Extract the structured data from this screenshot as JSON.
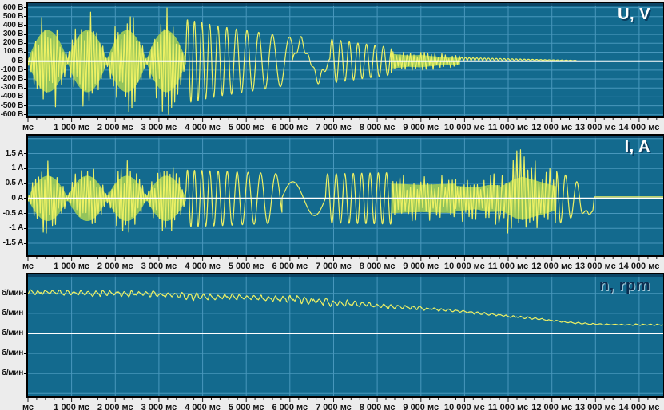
{
  "chart_data": {
    "type": "line",
    "title": "",
    "x_axis": {
      "unit": "мс",
      "range_ms": [
        0,
        14550
      ],
      "major_tick_ms": 1000,
      "minor_tick_ms": 200,
      "tick_labels": [
        "мс",
        "1 000 мс",
        "2 000 мс",
        "3 000 мс",
        "4 000 мс",
        "5 000 мс",
        "6 000 мс",
        "7 000 мс",
        "8 000 мс",
        "9 000 мс",
        "10 000 мс",
        "11 000 мс",
        "12 000 мс",
        "13 000 мс",
        "14 000 мс"
      ]
    },
    "panels": [
      {
        "id": "voltage",
        "corner_label": "U, V",
        "unit": "В",
        "ylim": [
          -620,
          650
        ],
        "grid_step": 100,
        "zero": 0,
        "y_ticks": [
          {
            "v": 600,
            "label": "600 В"
          },
          {
            "v": 500,
            "label": "500 В"
          },
          {
            "v": 400,
            "label": "400 В"
          },
          {
            "v": 300,
            "label": "300 В"
          },
          {
            "v": 200,
            "label": "200 В"
          },
          {
            "v": 100,
            "label": "100 В"
          },
          {
            "v": 0,
            "label": "0 В"
          },
          {
            "v": -100,
            "label": "-100 В"
          },
          {
            "v": -200,
            "label": "-200 В"
          },
          {
            "v": -300,
            "label": "-300 В"
          },
          {
            "v": -400,
            "label": "-400 В"
          },
          {
            "v": -500,
            "label": "-500 В"
          },
          {
            "v": -600,
            "label": "-600 В"
          }
        ],
        "segments": [
          {
            "type": "zigzag",
            "t0": 0,
            "t1": 3620,
            "dt": 35,
            "env": [
              [
                0,
                620
              ],
              [
                3620,
                620
              ]
            ],
            "am": {
              "period": 905,
              "floor": 0.1
            },
            "body": 0.56,
            "seed": 3
          },
          {
            "type": "sine",
            "t0": 3620,
            "t1": 6060,
            "dt": 7,
            "f0": 0.0064,
            "f1": 0.0021,
            "env": [
              [
                3620,
                470
              ],
              [
                4400,
                390
              ],
              [
                5200,
                330
              ],
              [
                6060,
                265
              ]
            ]
          },
          {
            "type": "sine",
            "t0": 6060,
            "t1": 6920,
            "dt": 7,
            "f0": 0.00125,
            "f1": 0.00115,
            "env": [
              [
                6060,
                285
              ],
              [
                6920,
                245
              ]
            ],
            "ripple": {
              "amp": 0.28,
              "period": 195
            }
          },
          {
            "type": "sine",
            "t0": 6920,
            "t1": 8320,
            "dt": 7,
            "f0": 0.005,
            "f1": 0.0052,
            "env": [
              [
                6920,
                250
              ],
              [
                7600,
                200
              ],
              [
                8320,
                155
              ]
            ]
          },
          {
            "type": "zigzag",
            "t0": 8320,
            "t1": 9900,
            "dt": 40,
            "env": [
              [
                8320,
                150
              ],
              [
                8700,
                115
              ],
              [
                9000,
                125
              ],
              [
                9400,
                90
              ],
              [
                9900,
                65
              ]
            ],
            "body": 0.55,
            "seed": 11
          },
          {
            "type": "sine",
            "t0": 9900,
            "t1": 12560,
            "dt": 9,
            "f0": 0.0058,
            "f1": 0.005,
            "abs": true,
            "base": 4,
            "env": [
              [
                9900,
                38
              ],
              [
                10800,
                26
              ],
              [
                11800,
                13
              ],
              [
                12560,
                5
              ]
            ]
          },
          {
            "type": "flat",
            "t0": 12560,
            "t1": 14550,
            "v": 0
          }
        ]
      },
      {
        "id": "current",
        "corner_label": "I, A",
        "unit": "А",
        "ylim": [
          -1.9,
          2.1
        ],
        "grid_step": 0.5,
        "zero": 0,
        "y_ticks": [
          {
            "v": 1.5,
            "label": "1.5 А"
          },
          {
            "v": 1,
            "label": "1 А"
          },
          {
            "v": 0.5,
            "label": "0.5 А"
          },
          {
            "v": 0,
            "label": "0 А"
          },
          {
            "v": -0.5,
            "label": "-0.5 А"
          },
          {
            "v": -1,
            "label": "-1 А"
          },
          {
            "v": -1.5,
            "label": "-1.5 А"
          }
        ],
        "segments": [
          {
            "type": "zigzag",
            "t0": 0,
            "t1": 3620,
            "dt": 35,
            "env": [
              [
                0,
                1.3
              ],
              [
                3620,
                1.3
              ]
            ],
            "am": {
              "period": 905,
              "floor": 0.13
            },
            "body": 0.58,
            "seed": 7
          },
          {
            "type": "sine",
            "t0": 3620,
            "t1": 5820,
            "dt": 7,
            "f0": 0.0064,
            "f1": 0.0023,
            "env": [
              [
                3620,
                0.95
              ],
              [
                4600,
                0.9
              ],
              [
                5820,
                0.82
              ]
            ]
          },
          {
            "type": "sine",
            "t0": 5820,
            "t1": 6820,
            "dt": 7,
            "f0": 0.001,
            "f1": 0.001,
            "env": [
              [
                5820,
                0.55
              ],
              [
                6820,
                0.58
              ]
            ]
          },
          {
            "type": "sine",
            "t0": 6820,
            "t1": 8320,
            "dt": 7,
            "f0": 0.005,
            "f1": 0.0054,
            "env": [
              [
                6820,
                0.82
              ],
              [
                8320,
                0.86
              ]
            ]
          },
          {
            "type": "zigzag",
            "t0": 8320,
            "t1": 9800,
            "dt": 40,
            "env": [
              [
                8320,
                0.82
              ],
              [
                9000,
                0.76
              ],
              [
                9800,
                0.82
              ]
            ],
            "body": 0.6,
            "seed": 19
          },
          {
            "type": "zigzag",
            "t0": 9800,
            "t1": 10820,
            "dt": 38,
            "env": [
              [
                9800,
                0.85
              ],
              [
                10250,
                0.72
              ],
              [
                10550,
                0.9
              ],
              [
                10820,
                0.88
              ]
            ],
            "body": 0.5,
            "seed": 23
          },
          {
            "type": "zigzag",
            "t0": 10820,
            "t1": 12110,
            "dt": 42,
            "env": [
              [
                10820,
                0.92
              ],
              [
                11150,
                1.55
              ],
              [
                11330,
                1.72
              ],
              [
                11600,
                1.45
              ],
              [
                11870,
                1.18
              ],
              [
                12110,
                0.95
              ]
            ],
            "body": 0.42,
            "seed": 31
          },
          {
            "type": "points",
            "pts": [
              [
                12110,
                0.9
              ],
              [
                12200,
                -0.82
              ],
              [
                12310,
                0.78
              ],
              [
                12430,
                -0.66
              ],
              [
                12570,
                0.56
              ],
              [
                12700,
                -0.5
              ],
              [
                12790,
                -0.4
              ],
              [
                12860,
                -0.54
              ],
              [
                12930,
                -0.44
              ],
              [
                12980,
                0.05
              ]
            ]
          },
          {
            "type": "flat",
            "t0": 12980,
            "t1": 14550,
            "v": 0.05
          }
        ]
      },
      {
        "id": "speed",
        "corner_label": "n, rpm",
        "unit": "б/мин",
        "ylim": [
          -3.15,
          2.95
        ],
        "grid_step": 1,
        "zero": 0,
        "y_ticks": [
          {
            "v": 2,
            "label": "б/мин"
          },
          {
            "v": 1,
            "label": "б/мин"
          },
          {
            "v": 0,
            "label": "б/мин"
          },
          {
            "v": -1,
            "label": "б/мин"
          },
          {
            "v": -2,
            "label": "б/мин"
          }
        ],
        "segments": [
          {
            "type": "noisy",
            "t0": 0,
            "t1": 14550,
            "dt": 14,
            "saw_period": 165,
            "jitter": 0.5,
            "seed": 5,
            "base": [
              [
                0,
                2.08
              ],
              [
                1000,
                2.03
              ],
              [
                2000,
                2.0
              ],
              [
                3000,
                1.96
              ],
              [
                3600,
                1.86
              ],
              [
                4600,
                1.83
              ],
              [
                5600,
                1.76
              ],
              [
                6300,
                1.7
              ],
              [
                6800,
                1.56
              ],
              [
                7300,
                1.52
              ],
              [
                8100,
                1.36
              ],
              [
                8900,
                1.28
              ],
              [
                9600,
                1.16
              ],
              [
                10300,
                1.02
              ],
              [
                11000,
                0.87
              ],
              [
                11700,
                0.72
              ],
              [
                12300,
                0.57
              ],
              [
                12800,
                0.48
              ],
              [
                13300,
                0.44
              ],
              [
                14550,
                0.43
              ]
            ],
            "ripple": [
              [
                0,
                0.11
              ],
              [
                3000,
                0.12
              ],
              [
                4200,
                0.15
              ],
              [
                5200,
                0.12
              ],
              [
                6600,
                0.16
              ],
              [
                7600,
                0.11
              ],
              [
                8600,
                0.08
              ],
              [
                9600,
                0.06
              ],
              [
                10600,
                0.05
              ],
              [
                11600,
                0.04
              ],
              [
                12600,
                0.03
              ],
              [
                14550,
                0.025
              ]
            ]
          }
        ]
      }
    ],
    "colors": {
      "plot_bg": "#136a8e",
      "grid": "#4f9cc1",
      "zero_line": "#ffffff",
      "trace": "#eef164",
      "trace_fill": "#93c45c",
      "axis_text": "#141414",
      "strip_bg": "#ececec",
      "border": "#000000",
      "top_shade": "#0a3a58"
    }
  }
}
